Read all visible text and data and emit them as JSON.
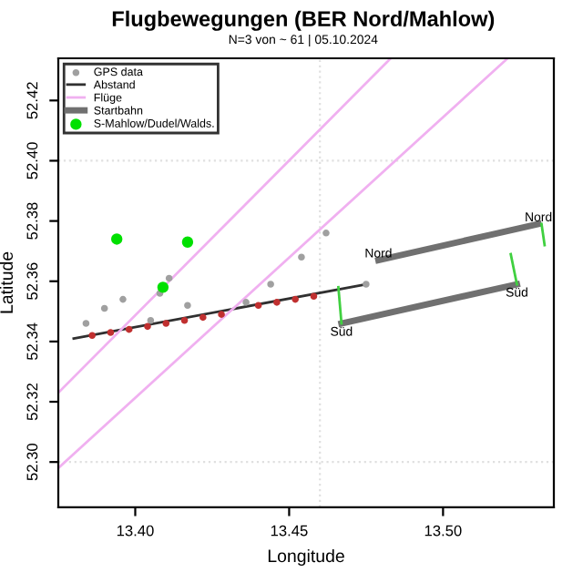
{
  "chart_data": {
    "type": "scatter",
    "title": "Flugbewegungen (BER Nord/Mahlow)",
    "subtitle": "N=3 von ~ 61 | 05.10.2024",
    "xlabel": "Longitude",
    "ylabel": "Latitude",
    "xlim": [
      13.375,
      13.536
    ],
    "ylim": [
      52.285,
      52.434
    ],
    "xticks": [
      {
        "value": 13.4,
        "label": "13.40"
      },
      {
        "value": 13.45,
        "label": "13.45"
      },
      {
        "value": 13.5,
        "label": "13.50"
      }
    ],
    "yticks": [
      {
        "value": 52.3,
        "label": "52.30"
      },
      {
        "value": 52.32,
        "label": "52.32"
      },
      {
        "value": 52.34,
        "label": "52.34"
      },
      {
        "value": 52.36,
        "label": "52.36"
      },
      {
        "value": 52.38,
        "label": "52.38"
      },
      {
        "value": 52.4,
        "label": "52.40"
      },
      {
        "value": 52.42,
        "label": "52.42"
      }
    ],
    "grid": false,
    "legend": "top left",
    "ref_lines": [
      {
        "axis": "x",
        "value": 13.46,
        "color": "#e0e0e0",
        "line_style": "dotted"
      },
      {
        "axis": "y",
        "value": 52.4,
        "color": "#e0e0e0",
        "line_style": "dotted"
      },
      {
        "axis": "y",
        "value": 52.3,
        "color": "#e0e0e0",
        "line_style": "dotted"
      }
    ],
    "series": [
      {
        "name": "GPS data",
        "marker": "circle",
        "color": "#a0a0a0",
        "x": [
          13.384,
          13.39,
          13.396,
          13.408,
          13.411,
          13.405,
          13.417,
          13.436,
          13.444,
          13.454,
          13.462,
          13.475
        ],
        "values": [
          52.346,
          52.351,
          52.354,
          52.356,
          52.361,
          52.347,
          52.352,
          52.353,
          52.359,
          52.368,
          52.376,
          52.359
        ]
      },
      {
        "name": "Abstand",
        "type": "line",
        "color": "#303030",
        "x": [
          13.38,
          13.475
        ],
        "values": [
          52.341,
          52.359
        ]
      },
      {
        "name": "Flüge",
        "type": "line",
        "color": "#f0b0f0",
        "x": [
          13.375,
          13.483
        ],
        "values": [
          52.323,
          52.434
        ]
      },
      {
        "type": "line",
        "color": "#f0b0f0",
        "x": [
          13.375,
          13.521
        ],
        "values": [
          52.298,
          52.434
        ]
      },
      {
        "marker": "circle",
        "color": "#c03030",
        "x": [
          13.386,
          13.392,
          13.398,
          13.404,
          13.41,
          13.416,
          13.422,
          13.428,
          13.44,
          13.446,
          13.452,
          13.458
        ],
        "values": [
          52.342,
          52.343,
          52.344,
          52.345,
          52.346,
          52.347,
          52.348,
          52.349,
          52.352,
          52.353,
          52.354,
          52.355
        ]
      },
      {
        "name": "Startbahn",
        "type": "line",
        "color": "#707070",
        "x": [
          13.479,
          13.531
        ],
        "values": [
          52.367,
          52.379
        ]
      },
      {
        "type": "line",
        "color": "#707070",
        "x": [
          13.467,
          13.524
        ],
        "values": [
          52.346,
          52.359
        ]
      },
      {
        "type": "line",
        "color": "#40d040",
        "x": [
          13.466,
          13.467
        ],
        "values": [
          52.358,
          52.346
        ]
      },
      {
        "type": "line",
        "color": "#40d040",
        "x": [
          13.522,
          13.524
        ],
        "values": [
          52.369,
          52.359
        ]
      },
      {
        "type": "line",
        "color": "#40d040",
        "x": [
          13.532,
          13.533
        ],
        "values": [
          52.379,
          52.372
        ]
      },
      {
        "name": "S-Mahlow/Dudel/Walds.",
        "marker": "circle",
        "color": "#00e000",
        "x": [
          13.394,
          13.417,
          13.409
        ],
        "values": [
          52.374,
          52.373,
          52.358
        ]
      }
    ],
    "annotations": [
      {
        "text": "Nord",
        "x": 13.479,
        "y": 52.369
      },
      {
        "text": "Nord",
        "x": 13.531,
        "y": 52.381
      },
      {
        "text": "Süd",
        "x": 13.467,
        "y": 52.343
      },
      {
        "text": "Süd",
        "x": 13.524,
        "y": 52.356
      }
    ]
  }
}
